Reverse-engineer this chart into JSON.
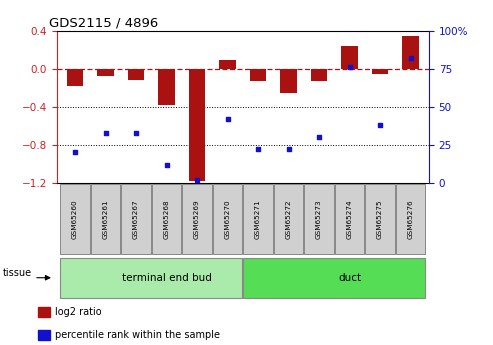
{
  "title": "GDS2115 / 4896",
  "samples": [
    "GSM65260",
    "GSM65261",
    "GSM65267",
    "GSM65268",
    "GSM65269",
    "GSM65270",
    "GSM65271",
    "GSM65272",
    "GSM65273",
    "GSM65274",
    "GSM65275",
    "GSM65276"
  ],
  "log2_ratio": [
    -0.18,
    -0.07,
    -0.12,
    -0.38,
    -1.18,
    0.1,
    -0.13,
    -0.25,
    -0.13,
    0.24,
    -0.05,
    0.35
  ],
  "percentile_rank": [
    20,
    33,
    33,
    12,
    2,
    42,
    22,
    22,
    30,
    76,
    38,
    82
  ],
  "groups": [
    {
      "label": "terminal end bud",
      "start": 0,
      "end": 6,
      "color": "#AAEAAA"
    },
    {
      "label": "duct",
      "start": 6,
      "end": 12,
      "color": "#55DD55"
    }
  ],
  "bar_color": "#AA1111",
  "dot_color": "#1111CC",
  "ylim_left": [
    -1.2,
    0.4
  ],
  "ylim_right": [
    0,
    100
  ],
  "yticks_left": [
    -1.2,
    -0.8,
    -0.4,
    0.0,
    0.4
  ],
  "yticks_right": [
    0,
    25,
    50,
    75,
    100
  ],
  "hlines": [
    -0.8,
    -0.4
  ],
  "dashed_line": 0.0,
  "left_tick_color": "#CC2222",
  "right_tick_color": "#1111CC",
  "legend_items": [
    {
      "label": "log2 ratio",
      "color": "#AA1111"
    },
    {
      "label": "percentile rank within the sample",
      "color": "#1111CC"
    }
  ],
  "tissue_label": "tissue",
  "background_color": "#FFFFFF",
  "plot_bg": "#FFFFFF",
  "bar_width": 0.55,
  "sample_box_color": "#D0D0D0",
  "sample_box_edge": "#888888"
}
